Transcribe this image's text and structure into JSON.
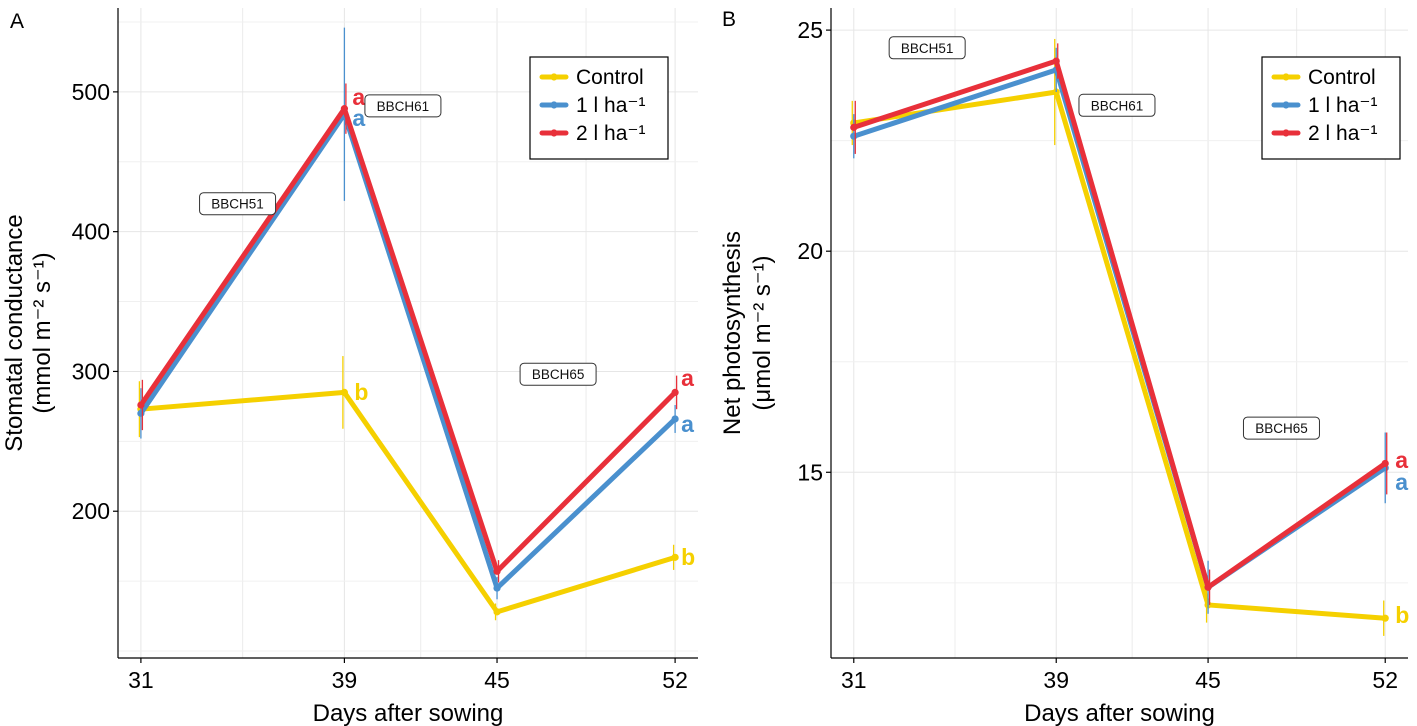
{
  "chart_data": [
    {
      "type": "line",
      "panel_label": "A",
      "title": "",
      "xlabel": "Days after sowing",
      "ylabel_line1": "Stomatal conductance",
      "ylabel_line2": "(mmol m⁻² s⁻¹)",
      "x": [
        31,
        39,
        45,
        52
      ],
      "xticks": [
        "31",
        "39",
        "45",
        "52"
      ],
      "xlim": [
        30.1,
        52.9
      ],
      "ylim": [
        95,
        560
      ],
      "yticks": [
        200,
        300,
        400,
        500
      ],
      "series": [
        {
          "name": "Control",
          "color": "#F5D000",
          "values": [
            273,
            285,
            128,
            167
          ],
          "errors": [
            20,
            26,
            6,
            9
          ]
        },
        {
          "name": "1 l ha⁻¹",
          "color": "#4A90CE",
          "values": [
            270,
            484,
            145,
            266
          ],
          "errors": [
            18,
            62,
            8,
            10
          ]
        },
        {
          "name": "2 l ha⁻¹",
          "color": "#E8303A",
          "values": [
            276,
            488,
            157,
            285
          ],
          "errors": [
            18,
            18,
            8,
            12
          ]
        }
      ],
      "annotations": [
        {
          "text": "a",
          "series": 2,
          "x": 39,
          "y": 497,
          "dx": 8
        },
        {
          "text": "a",
          "series": 1,
          "x": 39,
          "y": 482,
          "dx": 8
        },
        {
          "text": "b",
          "series": 0,
          "x": 39,
          "y": 286,
          "dx": 10
        },
        {
          "text": "a",
          "series": 2,
          "x": 52,
          "y": 296,
          "dx": 6
        },
        {
          "text": "a",
          "series": 1,
          "x": 52,
          "y": 263,
          "dx": 6
        },
        {
          "text": "b",
          "series": 0,
          "x": 52,
          "y": 168,
          "dx": 6
        }
      ],
      "stage_labels": [
        {
          "text": "BBCH51",
          "x": 34.8,
          "y": 420
        },
        {
          "text": "BBCH61",
          "x": 41.3,
          "y": 490
        },
        {
          "text": "BBCH65",
          "x": 47.4,
          "y": 298
        }
      ],
      "legend": {
        "position": "top-right",
        "entries": [
          "Control",
          "1 l ha⁻¹",
          "2 l ha⁻¹"
        ]
      }
    },
    {
      "type": "line",
      "panel_label": "B",
      "title": "",
      "xlabel": "Days after sowing",
      "ylabel_line1": "Net photosynthesis",
      "ylabel_line2": "(μmol m⁻² s⁻¹)",
      "x": [
        31,
        39,
        45,
        52
      ],
      "xticks": [
        "31",
        "39",
        "45",
        "52"
      ],
      "xlim": [
        30.1,
        52.9
      ],
      "ylim": [
        10.8,
        25.5
      ],
      "yticks": [
        15,
        20,
        25
      ],
      "series": [
        {
          "name": "Control",
          "color": "#F5D000",
          "values": [
            22.9,
            23.6,
            12.0,
            11.7
          ],
          "errors": [
            0.5,
            1.2,
            0.4,
            0.4
          ]
        },
        {
          "name": "1 l ha⁻¹",
          "color": "#4A90CE",
          "values": [
            22.6,
            24.1,
            12.4,
            15.1
          ],
          "errors": [
            0.5,
            0.5,
            0.6,
            0.8
          ]
        },
        {
          "name": "2 l ha⁻¹",
          "color": "#E8303A",
          "values": [
            22.8,
            24.3,
            12.4,
            15.2
          ],
          "errors": [
            0.6,
            0.4,
            0.4,
            0.7
          ]
        }
      ],
      "annotations": [
        {
          "text": "a",
          "series": 2,
          "x": 52,
          "y": 15.3,
          "dx": 10
        },
        {
          "text": "a",
          "series": 1,
          "x": 52,
          "y": 14.8,
          "dx": 10
        },
        {
          "text": "b",
          "series": 0,
          "x": 52,
          "y": 11.8,
          "dx": 10
        }
      ],
      "stage_labels": [
        {
          "text": "BBCH51",
          "x": 33.9,
          "y": 24.6
        },
        {
          "text": "BBCH61",
          "x": 41.4,
          "y": 23.3
        },
        {
          "text": "BBCH65",
          "x": 47.9,
          "y": 16.0
        }
      ],
      "legend": {
        "position": "top-right",
        "entries": [
          "Control",
          "1 l ha⁻¹",
          "2 l ha⁻¹"
        ]
      }
    }
  ]
}
